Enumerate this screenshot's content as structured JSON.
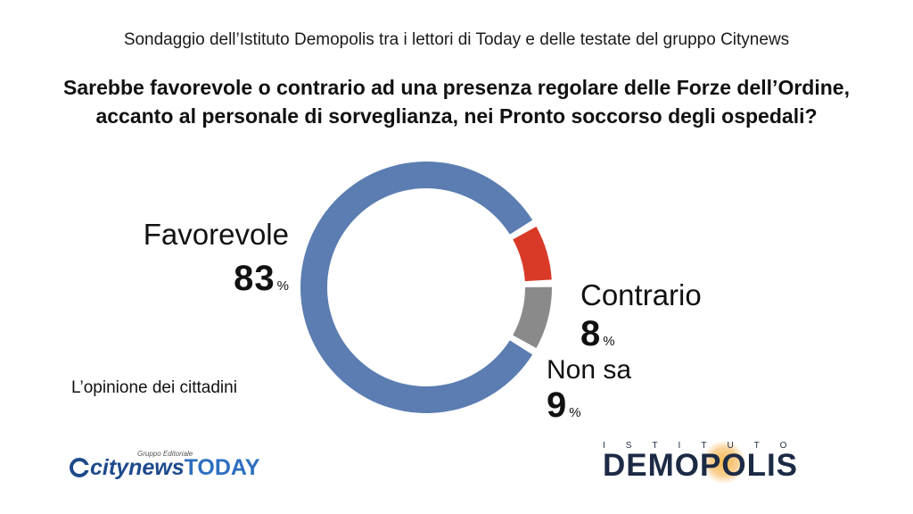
{
  "header": {
    "subtitle": "Sondaggio dell’Istituto Demopolis tra i lettori di Today e delle testate del gruppo Citynews",
    "question_line1": "Sarebbe favorevole o contrario ad una presenza regolare delle Forze dell’Ordine,",
    "question_line2": "accanto al personale di sorveglianza, nei Pronto soccorso degli ospedali?"
  },
  "chart_data": {
    "type": "pie",
    "style": "donut",
    "title": "",
    "slices": [
      {
        "label": "Favorevole",
        "value": 83,
        "unit": "%",
        "color": "#5b7db1"
      },
      {
        "label": "Contrario",
        "value": 8,
        "unit": "%",
        "color": "#d93a27"
      },
      {
        "label": "Non sa",
        "value": 9,
        "unit": "%",
        "color": "#8a8a8a"
      }
    ]
  },
  "footer": {
    "note": "L’opinione dei cittadini",
    "citynews_small": "Gruppo Editoriale",
    "citynews_name": "citynews",
    "citynews_today": "TODAY",
    "demopolis_top": "ISTITUTO",
    "demopolis_main": "DEMOPOLIS"
  }
}
